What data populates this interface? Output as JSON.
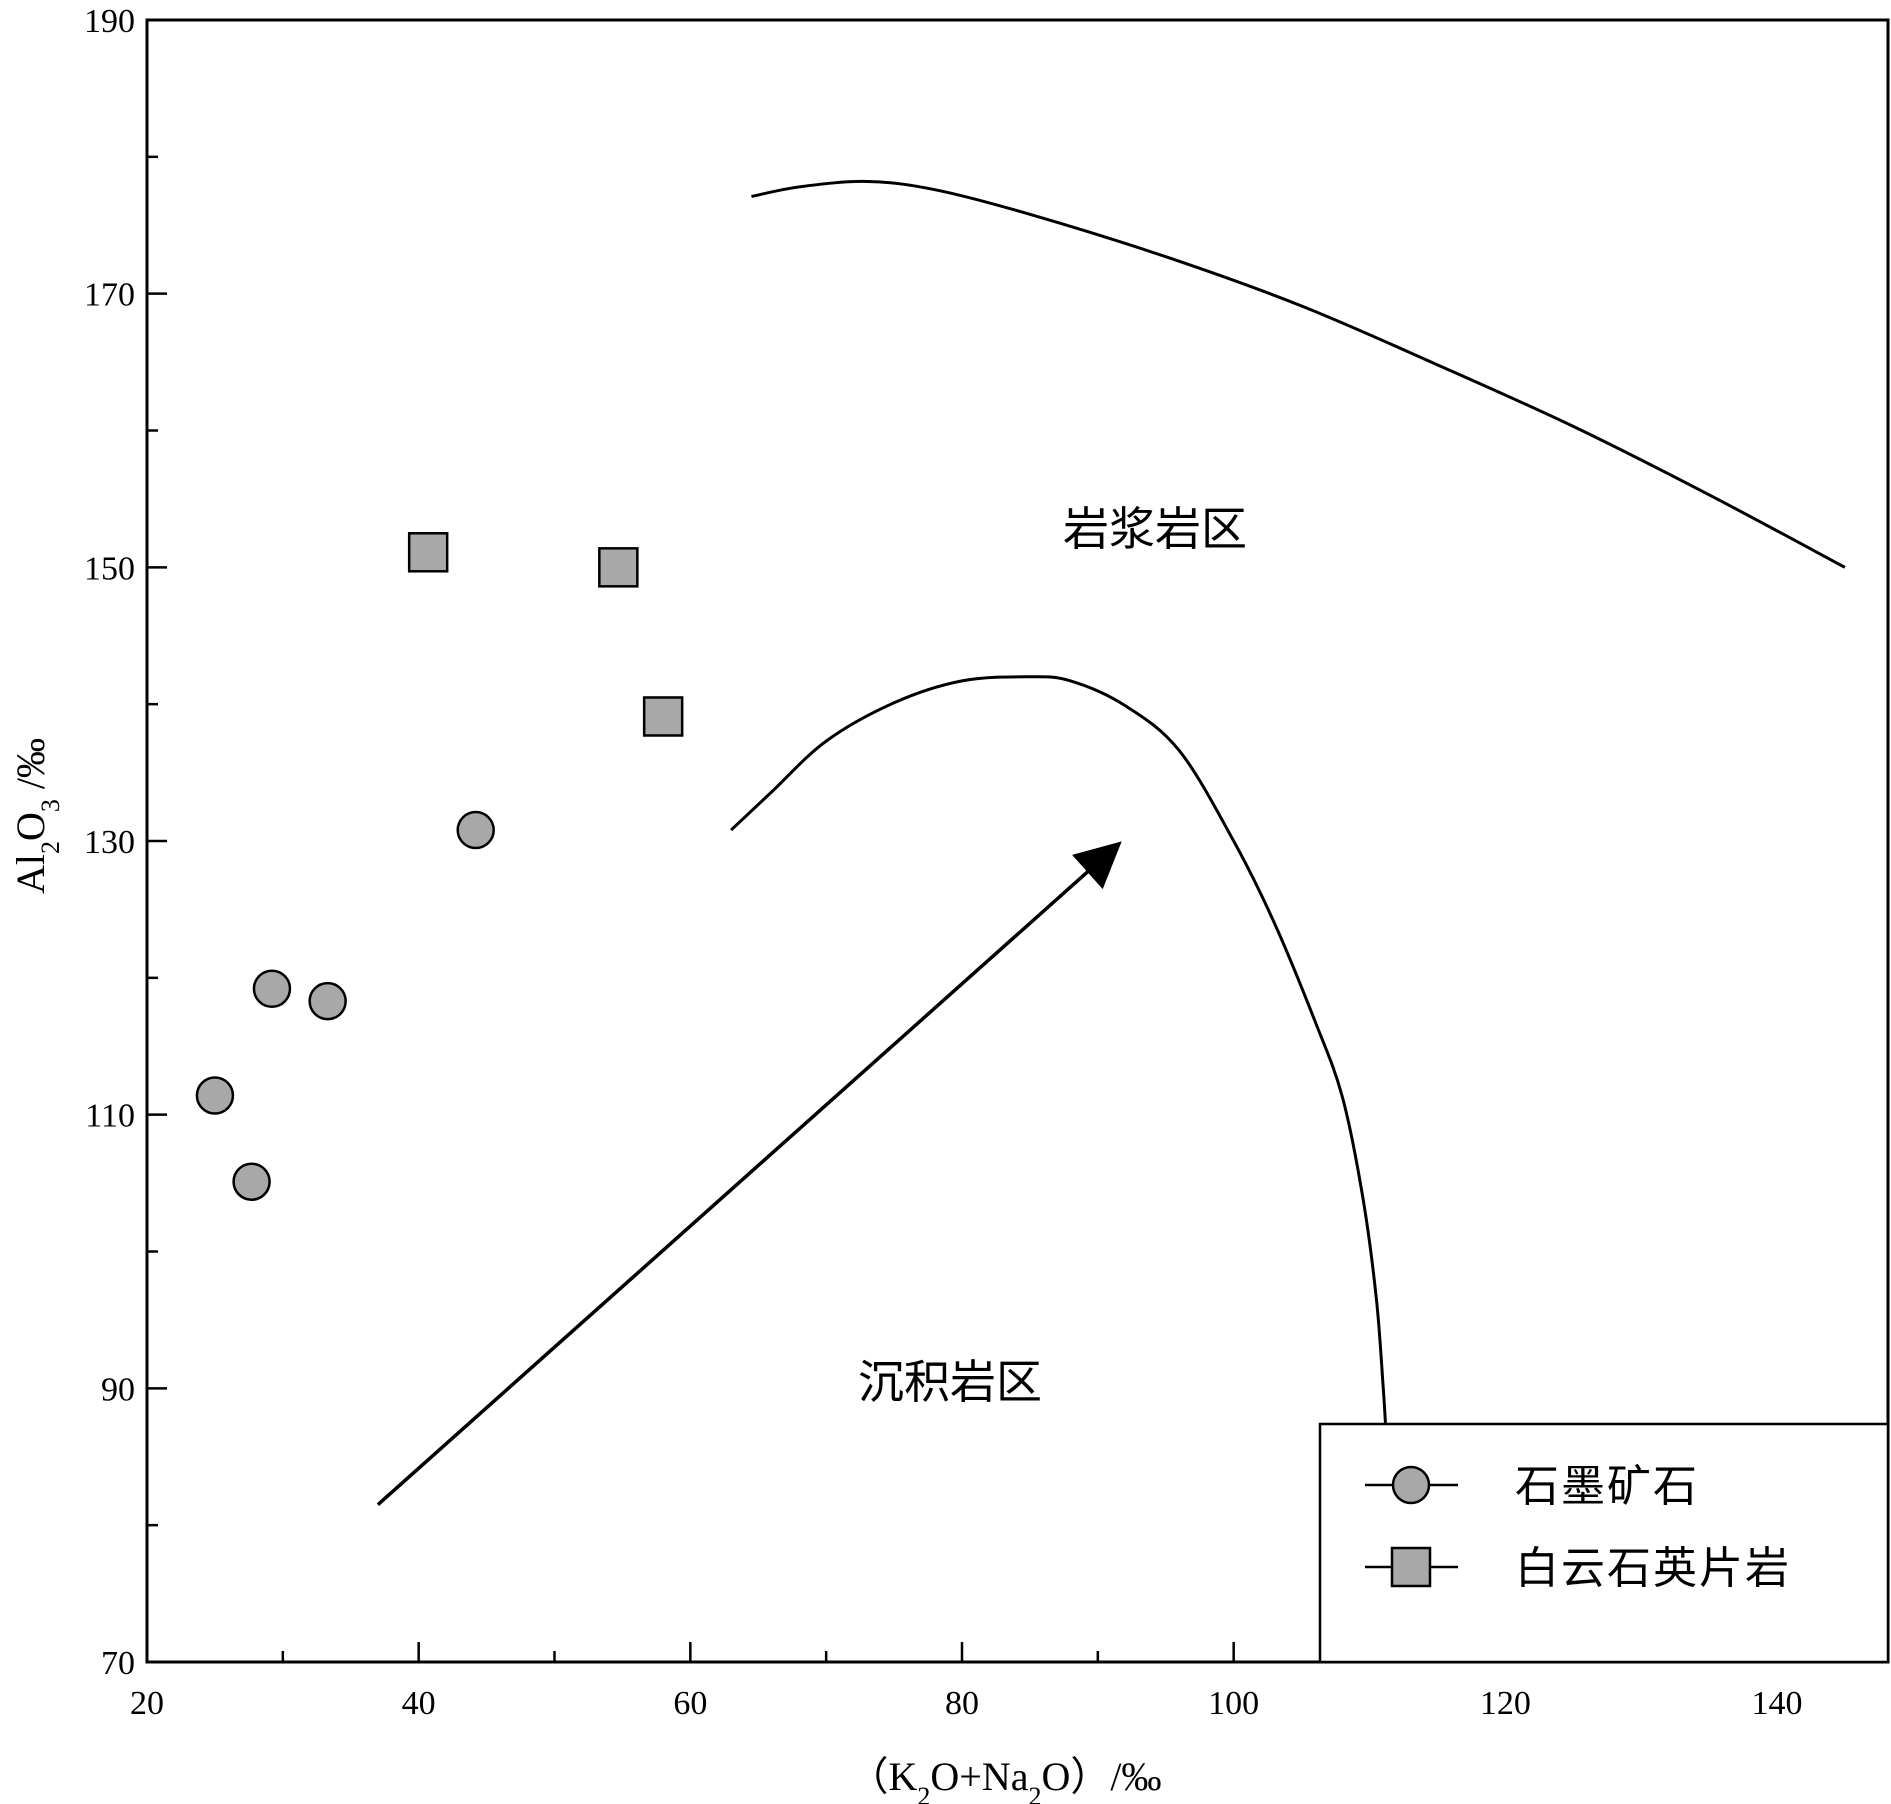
{
  "chart_data": {
    "type": "scatter",
    "title": "",
    "xlabel": {
      "pre": "（K",
      "sub1": "2",
      "mid": "O+Na",
      "sub2": "2",
      "post": "O）/‰"
    },
    "ylabel": {
      "pre": "Al",
      "sub1": "2",
      "mid": "O",
      "sub2": "3",
      "post": " /‰"
    },
    "xlim": [
      20,
      148
    ],
    "ylim": [
      70,
      190
    ],
    "x_ticks": [
      "20",
      "40",
      "60",
      "80",
      "100",
      "120",
      "140"
    ],
    "y_ticks": [
      "70",
      "90",
      "110",
      "130",
      "150",
      "170",
      "190"
    ],
    "grid": false,
    "legend_position": "bottom-right",
    "series": [
      {
        "name": "石墨矿石",
        "marker": "circle",
        "color": "#a8a8a8",
        "points": [
          [
            25.0,
            111.4
          ],
          [
            27.7,
            105.1
          ],
          [
            29.2,
            119.2
          ],
          [
            33.3,
            118.3
          ],
          [
            44.2,
            130.8
          ]
        ]
      },
      {
        "name": "白云石英片岩",
        "marker": "square",
        "color": "#a8a8a8",
        "points": [
          [
            40.7,
            151.1
          ],
          [
            54.7,
            150.0
          ],
          [
            58.0,
            139.1
          ]
        ]
      }
    ],
    "boundary_curves": [
      {
        "name": "upper",
        "points": [
          [
            64.5,
            177.1
          ],
          [
            68,
            177.8
          ],
          [
            73,
            178.2
          ],
          [
            78,
            177.6
          ],
          [
            85,
            175.8
          ],
          [
            95,
            172.7
          ],
          [
            105,
            169.1
          ],
          [
            115,
            164.8
          ],
          [
            125,
            160.3
          ],
          [
            135,
            155.3
          ],
          [
            145.0,
            150.0
          ]
        ]
      },
      {
        "name": "lower",
        "points": [
          [
            63.0,
            130.8
          ],
          [
            66,
            133.6
          ],
          [
            70,
            137.3
          ],
          [
            75,
            140.1
          ],
          [
            80,
            141.7
          ],
          [
            85,
            142.0
          ],
          [
            88,
            141.7
          ],
          [
            92,
            139.9
          ],
          [
            96,
            136.6
          ],
          [
            100,
            130.0
          ],
          [
            103,
            124.0
          ],
          [
            106,
            116.8
          ],
          [
            108,
            111.3
          ],
          [
            109.5,
            104.0
          ],
          [
            110.5,
            96.6
          ],
          [
            111.0,
            90.2
          ],
          [
            111.2,
            87.0
          ]
        ]
      }
    ],
    "annotations": [
      {
        "text": "岩浆岩区",
        "x": 86,
        "y": 151.3
      },
      {
        "text": "沉积岩区",
        "x": 68.5,
        "y": 150.0
      }
    ],
    "arrow": {
      "from": [
        37.0,
        81.5
      ],
      "to": [
        91.0,
        129.3
      ]
    }
  }
}
